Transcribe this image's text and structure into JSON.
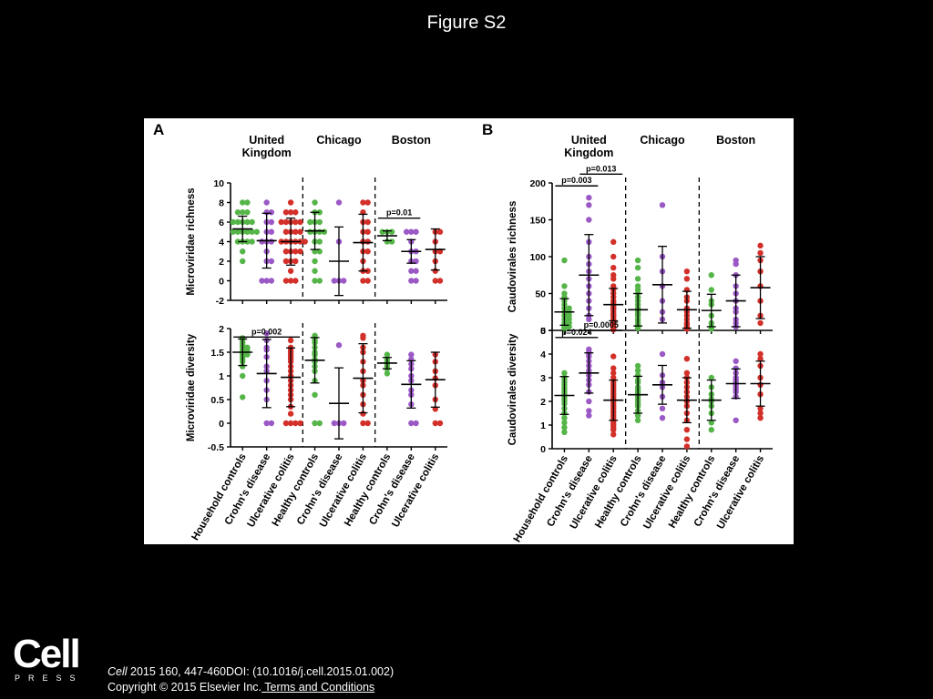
{
  "page": {
    "title": "Figure S2"
  },
  "footer": {
    "logo_text": "Cell",
    "logo_subtext": "PRESS",
    "citation_journal": "Cell",
    "citation_rest": " 2015 160, 447-460DOI: (10.1016/j.cell.2015.01.002)",
    "copyright": "Copyright © 2015 Elsevier Inc.",
    "terms_link": " Terms and Conditions"
  },
  "colors": {
    "green": "#55b548",
    "purple": "#9b59c6",
    "red": "#d3302a"
  },
  "group_colors": [
    "green",
    "purple",
    "red",
    "green",
    "purple",
    "red",
    "green",
    "purple",
    "red"
  ],
  "groups": [
    "Household controls",
    "Crohn's disease",
    "Ulcerative colitis",
    "Healthy controls",
    "Crohn's disease",
    "Ulcerative colitis",
    "Healthy controls",
    "Crohn's disease",
    "Ulcerative colitis"
  ],
  "sites": [
    "United\nKingdom",
    "Chicago",
    "Boston"
  ],
  "chart_data": [
    {
      "panel": "A",
      "type": "scatter",
      "ylabel": "Microviridae richness",
      "ylim": [
        -2,
        10
      ],
      "yticks": [
        -2,
        0,
        2,
        4,
        6,
        8,
        10
      ],
      "means": [
        5.3,
        4.1,
        4.0,
        5.1,
        2.0,
        3.9,
        4.6,
        3.0,
        3.2
      ],
      "sd": [
        1.3,
        2.8,
        2.4,
        1.9,
        3.5,
        2.9,
        0.5,
        1.2,
        2.1
      ],
      "points": [
        [
          8,
          8,
          7,
          7,
          7,
          6,
          6,
          6,
          6,
          6,
          5,
          5,
          5,
          5,
          5,
          5,
          4,
          4,
          4,
          4,
          3,
          2
        ],
        [
          8,
          7,
          7,
          6,
          6,
          5,
          5,
          4,
          4,
          4,
          3,
          2,
          2,
          0,
          0,
          0
        ],
        [
          8,
          7,
          7,
          7,
          6,
          6,
          6,
          6,
          6,
          5,
          5,
          5,
          5,
          4,
          4,
          4,
          4,
          4,
          4,
          3,
          3,
          3,
          3,
          2,
          2,
          2,
          1,
          0,
          0,
          0
        ],
        [
          8,
          7,
          7,
          6,
          6,
          6,
          5,
          5,
          5,
          5,
          4,
          4,
          3,
          3,
          2,
          1,
          0,
          0
        ],
        [
          8,
          4,
          0,
          0,
          0
        ],
        [
          8,
          8,
          7,
          6,
          6,
          5,
          5,
          4,
          4,
          3,
          3,
          2,
          1,
          1,
          0,
          0
        ],
        [
          5,
          5,
          5,
          4,
          4
        ],
        [
          5,
          5,
          5,
          4,
          3,
          3,
          2,
          2,
          1,
          1,
          0,
          0
        ],
        [
          5,
          5,
          4,
          3,
          3,
          2,
          1,
          0,
          0
        ]
      ],
      "sig": [
        {
          "label": "p=0.01",
          "from": 6,
          "to": 7,
          "y": 6.4
        }
      ]
    },
    {
      "panel": "B",
      "type": "scatter",
      "ylabel": "Caudovirales richness",
      "ylim": [
        0,
        200
      ],
      "yticks": [
        0,
        50,
        100,
        150,
        200
      ],
      "means": [
        25,
        75,
        35,
        28,
        62,
        28,
        27,
        40,
        58
      ],
      "sd": [
        18,
        55,
        22,
        22,
        52,
        25,
        22,
        35,
        42
      ],
      "points": [
        [
          95,
          60,
          50,
          45,
          40,
          35,
          30,
          30,
          25,
          25,
          20,
          20,
          15,
          15,
          10,
          10,
          8,
          5,
          5,
          3,
          2
        ],
        [
          180,
          170,
          150,
          120,
          100,
          90,
          80,
          70,
          60,
          50,
          40,
          30,
          20,
          15
        ],
        [
          120,
          100,
          85,
          75,
          70,
          60,
          55,
          50,
          45,
          40,
          38,
          35,
          32,
          30,
          28,
          25,
          22,
          20,
          18,
          15,
          12,
          10,
          8,
          5,
          3,
          2,
          1
        ],
        [
          95,
          85,
          70,
          60,
          55,
          50,
          45,
          40,
          35,
          30,
          28,
          25,
          22,
          20,
          15,
          12,
          8,
          5,
          3
        ],
        [
          170,
          100,
          80,
          60,
          40,
          25,
          15
        ],
        [
          80,
          70,
          55,
          45,
          40,
          30,
          25,
          20,
          15,
          10,
          8,
          5,
          3,
          2
        ],
        [
          75,
          55,
          40,
          35,
          20,
          10,
          5,
          2
        ],
        [
          95,
          90,
          75,
          60,
          50,
          40,
          30,
          25,
          15,
          10,
          5
        ],
        [
          115,
          105,
          95,
          80,
          60,
          40,
          20,
          10
        ]
      ],
      "sig": [
        {
          "label": "p=0.003",
          "from": 0,
          "to": 1,
          "y": 196
        },
        {
          "label": "p=0.013",
          "from": 1,
          "to": 2,
          "y": 212
        }
      ]
    },
    {
      "panel": "A",
      "type": "scatter",
      "ylabel": "Microviridae diversity",
      "ylim": [
        -0.5,
        2.0
      ],
      "yticks": [
        -0.5,
        0.0,
        0.5,
        1.0,
        1.5,
        2.0
      ],
      "means": [
        1.5,
        1.05,
        0.97,
        1.33,
        0.42,
        0.95,
        1.27,
        0.82,
        0.92
      ],
      "sd": [
        0.28,
        0.72,
        0.62,
        0.48,
        0.75,
        0.73,
        0.12,
        0.5,
        0.58
      ],
      "points": [
        [
          1.8,
          1.75,
          1.7,
          1.65,
          1.6,
          1.6,
          1.55,
          1.55,
          1.5,
          1.5,
          1.45,
          1.45,
          1.4,
          1.35,
          1.3,
          1.2,
          1.0,
          0.55
        ],
        [
          1.9,
          1.75,
          1.6,
          1.55,
          1.4,
          1.2,
          1.1,
          0.9,
          0.7,
          0.5,
          0.0,
          0.0
        ],
        [
          1.75,
          1.6,
          1.55,
          1.5,
          1.45,
          1.4,
          1.35,
          1.3,
          1.2,
          1.1,
          1.0,
          0.9,
          0.8,
          0.7,
          0.6,
          0.5,
          0.35,
          0.2,
          0.0,
          0.0,
          0.0,
          0.0
        ],
        [
          1.85,
          1.8,
          1.75,
          1.7,
          1.6,
          1.5,
          1.45,
          1.35,
          1.3,
          1.2,
          1.1,
          0.9,
          0.6,
          0.0,
          0.0
        ],
        [
          1.65,
          0.0,
          0.0,
          0.0
        ],
        [
          1.85,
          1.8,
          1.6,
          1.5,
          1.3,
          1.1,
          0.9,
          0.8,
          0.6,
          0.4,
          0.2,
          0.0,
          0.0
        ],
        [
          1.45,
          1.35,
          1.3,
          1.25,
          1.2,
          1.15,
          1.05
        ],
        [
          1.45,
          1.35,
          1.25,
          1.15,
          1.0,
          0.9,
          0.7,
          0.6,
          0.4,
          0.0,
          0.0
        ],
        [
          1.45,
          1.3,
          1.1,
          0.95,
          0.8,
          0.5,
          0.3,
          0.0,
          0.0
        ]
      ],
      "sig": [
        {
          "label": "p=0.002",
          "from": 0,
          "to": 2,
          "y": 1.82
        }
      ]
    },
    {
      "panel": "B",
      "type": "scatter",
      "ylabel": "Caudovirales diversity",
      "ylim": [
        0,
        5
      ],
      "yticks": [
        0,
        1,
        2,
        3,
        4,
        5
      ],
      "means": [
        2.25,
        3.2,
        2.05,
        2.28,
        2.7,
        2.05,
        2.05,
        2.75,
        2.75
      ],
      "sd": [
        0.8,
        0.85,
        0.85,
        0.78,
        0.82,
        0.95,
        0.85,
        0.62,
        0.95
      ],
      "points": [
        [
          3.2,
          3.0,
          2.9,
          2.8,
          2.7,
          2.6,
          2.5,
          2.4,
          2.3,
          2.2,
          2.1,
          2.0,
          1.9,
          1.7,
          1.5,
          1.3,
          1.1,
          0.9,
          0.7
        ],
        [
          4.2,
          4.1,
          4.0,
          3.9,
          3.7,
          3.5,
          3.3,
          3.1,
          2.9,
          2.7,
          2.4,
          2.0,
          1.6,
          1.4
        ],
        [
          3.9,
          3.4,
          3.2,
          3.0,
          2.8,
          2.7,
          2.6,
          2.5,
          2.4,
          2.3,
          2.2,
          2.1,
          2.0,
          1.9,
          1.8,
          1.7,
          1.6,
          1.5,
          1.4,
          1.3,
          1.2,
          1.1,
          1.0,
          0.9,
          0.8,
          0.6
        ],
        [
          3.5,
          3.3,
          3.1,
          2.9,
          2.8,
          2.6,
          2.5,
          2.4,
          2.3,
          2.2,
          2.1,
          2.0,
          1.9,
          1.8,
          1.6,
          1.4,
          1.2
        ],
        [
          4.0,
          3.1,
          2.8,
          2.6,
          2.2,
          1.7,
          1.3
        ],
        [
          3.8,
          3.2,
          3.0,
          2.8,
          2.6,
          2.4,
          2.2,
          2.0,
          1.8,
          1.5,
          1.2,
          0.8,
          0.4,
          0.1
        ],
        [
          3.0,
          2.6,
          2.3,
          2.1,
          2.0,
          1.8,
          1.5,
          1.1,
          0.8
        ],
        [
          3.7,
          3.4,
          3.2,
          3.0,
          2.9,
          2.8,
          2.7,
          2.6,
          2.5,
          2.4,
          2.2,
          1.2
        ],
        [
          4.0,
          3.8,
          3.5,
          3.0,
          2.7,
          2.3,
          1.7,
          1.5,
          1.3
        ]
      ],
      "sig": [
        {
          "label": "p=0.024",
          "from": 0,
          "to": 1,
          "y": 4.7
        },
        {
          "label": "p=0.0005",
          "from": 1,
          "to": 2,
          "y": 5.0
        }
      ]
    }
  ]
}
